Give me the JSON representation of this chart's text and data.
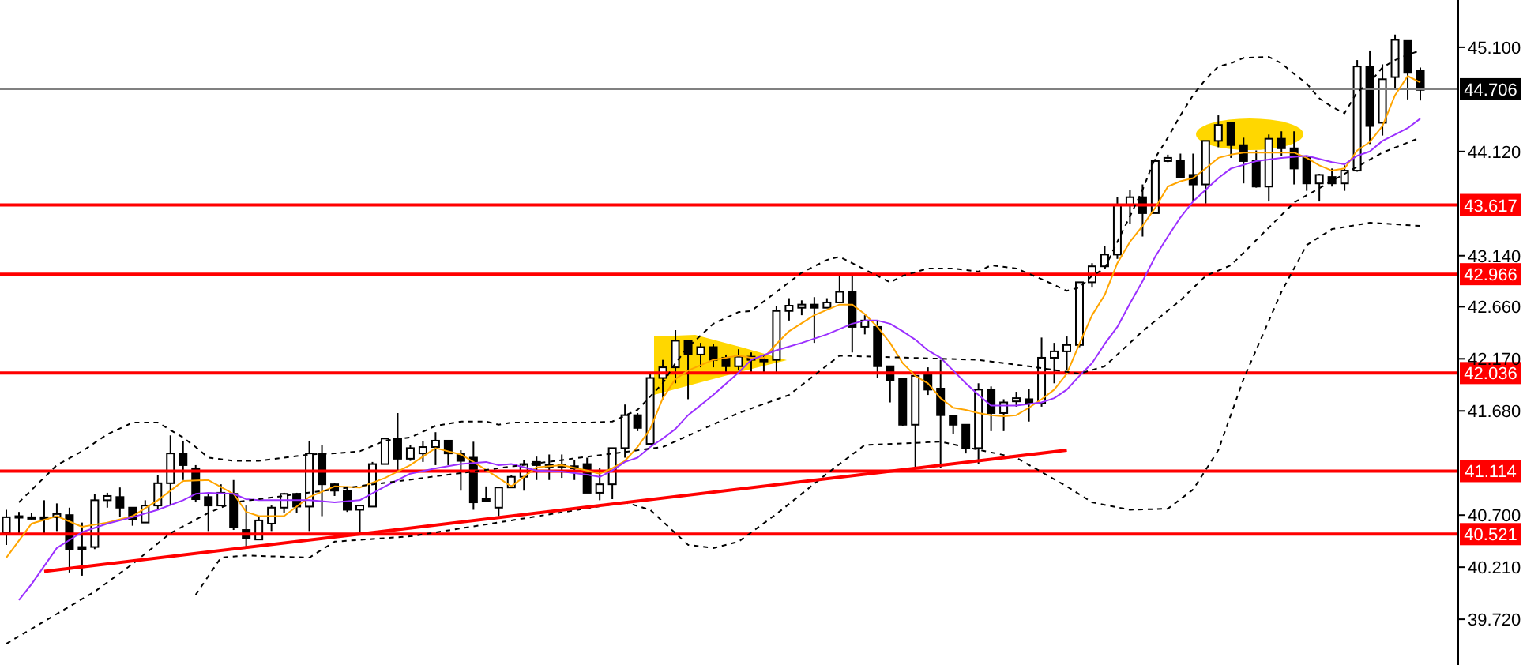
{
  "chart_data": {
    "type": "candlestick",
    "categories": [
      null,
      null,
      null,
      null,
      null,
      null,
      null,
      null,
      null,
      null,
      null,
      null,
      null,
      null,
      null,
      null,
      null,
      null,
      null,
      null,
      null,
      null,
      null,
      null,
      null,
      null,
      null,
      null,
      null,
      null,
      null,
      null,
      null,
      null,
      null,
      null,
      null,
      null,
      null,
      null,
      null,
      null,
      null,
      null,
      null,
      null,
      null,
      null,
      null,
      null,
      null,
      null,
      null,
      null,
      null,
      null,
      null,
      null,
      null,
      null,
      null,
      null,
      null,
      null,
      null,
      null,
      null,
      null,
      null,
      null,
      null,
      null,
      null,
      null,
      null,
      null,
      null,
      null,
      null,
      null,
      null,
      null,
      null,
      null,
      null,
      null,
      null,
      null,
      null,
      null,
      null,
      null,
      null,
      null,
      null,
      null,
      null,
      null,
      null,
      null,
      null,
      null,
      null,
      null,
      null,
      null,
      null,
      null,
      null,
      null,
      null,
      null,
      null
    ],
    "ohlc": [
      [
        40.53,
        40.75,
        40.42,
        40.68
      ],
      [
        40.68,
        40.73,
        40.53,
        40.69
      ],
      [
        40.68,
        40.72,
        40.66,
        40.67
      ],
      [
        40.67,
        40.84,
        40.53,
        40.68
      ],
      [
        40.68,
        40.81,
        40.55,
        40.71
      ],
      [
        40.7,
        40.77,
        40.16,
        40.38
      ],
      [
        40.4,
        40.63,
        40.13,
        40.38
      ],
      [
        40.4,
        40.9,
        40.38,
        40.84
      ],
      [
        40.84,
        40.91,
        40.77,
        40.88
      ],
      [
        40.87,
        40.96,
        40.68,
        40.77
      ],
      [
        40.77,
        40.77,
        40.6,
        40.66
      ],
      [
        40.63,
        40.84,
        40.63,
        40.79
      ],
      [
        40.79,
        41.08,
        40.75,
        41.0
      ],
      [
        41.0,
        41.45,
        40.79,
        41.28
      ],
      [
        41.28,
        41.4,
        41.03,
        41.17
      ],
      [
        41.14,
        41.17,
        40.82,
        40.85
      ],
      [
        40.87,
        40.9,
        40.55,
        40.79
      ],
      [
        40.79,
        40.99,
        40.79,
        40.91
      ],
      [
        40.9,
        41.03,
        40.56,
        40.59
      ],
      [
        40.56,
        40.79,
        40.39,
        40.48
      ],
      [
        40.47,
        40.68,
        40.47,
        40.65
      ],
      [
        40.62,
        40.79,
        40.55,
        40.77
      ],
      [
        40.77,
        40.91,
        40.72,
        40.9
      ],
      [
        40.9,
        40.91,
        40.72,
        40.78
      ],
      [
        40.78,
        41.4,
        40.55,
        41.28
      ],
      [
        41.28,
        41.36,
        40.69,
        40.99
      ],
      [
        40.99,
        41.0,
        40.88,
        40.93
      ],
      [
        40.93,
        40.97,
        40.73,
        40.75
      ],
      [
        40.75,
        40.79,
        40.53,
        40.79
      ],
      [
        40.78,
        41.2,
        40.78,
        41.18
      ],
      [
        41.18,
        41.42,
        41.18,
        41.42
      ],
      [
        41.42,
        41.66,
        41.12,
        41.23
      ],
      [
        41.23,
        41.36,
        41.21,
        41.33
      ],
      [
        41.28,
        41.4,
        41.2,
        41.34
      ],
      [
        41.34,
        41.48,
        41.17,
        41.4
      ],
      [
        41.4,
        41.4,
        41.17,
        41.28
      ],
      [
        41.28,
        41.31,
        40.93,
        41.21
      ],
      [
        41.24,
        41.39,
        40.75,
        40.82
      ],
      [
        40.85,
        40.97,
        40.84,
        40.84
      ],
      [
        40.77,
        40.96,
        40.69,
        40.96
      ],
      [
        40.96,
        41.08,
        40.96,
        41.06
      ],
      [
        41.06,
        41.22,
        40.93,
        41.18
      ],
      [
        41.2,
        41.25,
        41.03,
        41.17
      ],
      [
        41.17,
        41.27,
        41.03,
        41.16
      ],
      [
        41.16,
        41.27,
        41.05,
        41.17
      ],
      [
        41.16,
        41.22,
        41.03,
        41.14
      ],
      [
        41.18,
        41.24,
        40.91,
        40.91
      ],
      [
        40.91,
        41.14,
        40.84,
        40.99
      ],
      [
        40.99,
        41.33,
        40.85,
        41.33
      ],
      [
        41.33,
        41.74,
        41.24,
        41.64
      ],
      [
        41.64,
        41.66,
        41.49,
        41.52
      ],
      [
        41.37,
        42.04,
        41.37,
        41.99
      ],
      [
        41.99,
        42.16,
        41.79,
        42.09
      ],
      [
        42.09,
        42.44,
        41.94,
        42.34
      ],
      [
        42.34,
        42.34,
        41.79,
        42.21
      ],
      [
        42.21,
        42.32,
        42.09,
        42.28
      ],
      [
        42.28,
        42.31,
        42.09,
        42.16
      ],
      [
        42.18,
        42.21,
        42.03,
        42.1
      ],
      [
        42.1,
        42.26,
        42.06,
        42.19
      ],
      [
        42.19,
        42.23,
        42.04,
        42.16
      ],
      [
        42.16,
        42.21,
        42.03,
        42.16
      ],
      [
        42.16,
        42.67,
        42.04,
        42.62
      ],
      [
        42.62,
        42.74,
        42.53,
        42.67
      ],
      [
        42.65,
        42.72,
        42.58,
        42.68
      ],
      [
        42.68,
        42.75,
        42.32,
        42.65
      ],
      [
        42.65,
        42.74,
        42.65,
        42.7
      ],
      [
        42.7,
        42.95,
        42.7,
        42.8
      ],
      [
        42.8,
        42.95,
        42.23,
        42.47
      ],
      [
        42.47,
        42.58,
        42.4,
        42.53
      ],
      [
        42.47,
        42.53,
        41.99,
        42.1
      ],
      [
        42.1,
        42.1,
        41.76,
        41.97
      ],
      [
        41.98,
        41.99,
        41.54,
        41.55
      ],
      [
        41.55,
        42.03,
        41.15,
        42.01
      ],
      [
        42.03,
        42.09,
        41.83,
        41.88
      ],
      [
        41.89,
        42.16,
        41.14,
        41.64
      ],
      [
        41.63,
        41.64,
        41.46,
        41.55
      ],
      [
        41.55,
        41.55,
        41.28,
        41.33
      ],
      [
        41.33,
        41.94,
        41.18,
        41.88
      ],
      [
        41.88,
        41.91,
        41.49,
        41.66
      ],
      [
        41.66,
        41.79,
        41.49,
        41.76
      ],
      [
        41.77,
        41.86,
        41.72,
        41.8
      ],
      [
        41.79,
        41.89,
        41.58,
        41.75
      ],
      [
        41.75,
        42.37,
        41.72,
        42.18
      ],
      [
        42.18,
        42.32,
        41.94,
        42.24
      ],
      [
        42.24,
        42.38,
        42.06,
        42.3
      ],
      [
        42.3,
        42.89,
        42.28,
        42.89
      ],
      [
        42.89,
        43.07,
        42.84,
        43.04
      ],
      [
        43.04,
        43.23,
        43.02,
        43.15
      ],
      [
        43.15,
        43.69,
        43.11,
        43.62
      ],
      [
        43.62,
        43.76,
        43.44,
        43.69
      ],
      [
        43.69,
        43.81,
        43.32,
        43.54
      ],
      [
        43.54,
        44.05,
        43.54,
        44.03
      ],
      [
        44.03,
        44.09,
        44.02,
        44.06
      ],
      [
        44.03,
        44.1,
        43.88,
        43.88
      ],
      [
        43.9,
        44.1,
        43.65,
        43.81
      ],
      [
        43.81,
        44.22,
        43.63,
        44.22
      ],
      [
        44.22,
        44.46,
        44.16,
        44.37
      ],
      [
        44.39,
        44.4,
        44.06,
        44.18
      ],
      [
        44.18,
        44.25,
        43.82,
        44.03
      ],
      [
        44.03,
        44.13,
        43.78,
        43.79
      ],
      [
        43.79,
        44.28,
        43.65,
        44.24
      ],
      [
        44.24,
        44.31,
        44.08,
        44.15
      ],
      [
        44.15,
        44.31,
        43.81,
        43.96
      ],
      [
        44.06,
        44.08,
        43.75,
        43.82
      ],
      [
        43.82,
        43.91,
        43.65,
        43.9
      ],
      [
        43.88,
        43.96,
        43.79,
        43.82
      ],
      [
        43.82,
        43.99,
        43.75,
        43.94
      ],
      [
        43.94,
        44.98,
        43.93,
        44.92
      ],
      [
        44.92,
        45.07,
        44.19,
        44.36
      ],
      [
        44.39,
        44.94,
        44.27,
        44.8
      ],
      [
        44.82,
        45.22,
        44.7,
        45.17
      ],
      [
        45.16,
        45.16,
        44.61,
        44.86
      ],
      [
        44.88,
        44.91,
        44.6,
        44.7
      ]
    ],
    "series": [
      {
        "type": "line",
        "color": "#ffa500",
        "values": [
          40.3,
          null,
          40.62,
          null,
          40.69,
          null,
          40.59,
          null,
          40.63,
          null,
          40.69,
          null,
          40.84,
          null,
          41.02,
          null,
          41.03,
          null,
          40.9,
          40.73,
          40.69,
          null,
          40.69,
          null,
          40.87,
          null,
          40.97,
          null,
          40.96,
          null,
          41.05,
          null,
          41.17,
          null,
          41.33,
          null,
          41.27,
          41.2,
          null,
          41.05,
          40.97,
          null,
          41.15,
          null,
          41.17,
          null,
          41.12,
          41.09,
          41.14,
          41.21,
          41.34,
          41.51,
          41.8,
          41.98,
          42.06,
          null,
          42.16,
          null,
          42.2,
          42.18,
          42.18,
          42.31,
          42.43,
          null,
          42.58,
          null,
          42.68,
          42.68,
          42.59,
          42.47,
          42.32,
          42.13,
          42.01,
          41.94,
          41.8,
          41.71,
          41.69,
          41.66,
          41.64,
          41.63,
          41.64,
          41.71,
          41.79,
          41.88,
          42.03,
          42.31,
          42.58,
          42.77,
          43.07,
          43.27,
          43.42,
          43.59,
          43.79,
          43.84,
          43.87,
          43.96,
          44.06,
          44.09,
          44.11,
          null,
          44.11,
          null,
          44.11,
          44.06,
          43.99,
          43.94,
          43.96,
          44.13,
          44.21,
          44.36,
          44.65,
          44.83,
          44.77
        ]
      },
      {
        "type": "line",
        "color": "#9b30ff",
        "values": [
          null,
          39.9,
          40.05,
          null,
          40.39,
          null,
          40.54,
          null,
          40.62,
          null,
          40.68,
          null,
          40.75,
          null,
          40.84,
          40.9,
          40.91,
          null,
          40.9,
          40.85,
          40.84,
          null,
          40.84,
          null,
          40.84,
          null,
          40.82,
          null,
          40.84,
          null,
          40.97,
          null,
          41.09,
          null,
          41.14,
          null,
          41.18,
          null,
          41.2,
          41.17,
          41.18,
          null,
          41.12,
          null,
          41.11,
          null,
          41.08,
          41.06,
          41.12,
          41.2,
          41.24,
          41.34,
          41.42,
          41.51,
          41.64,
          null,
          41.83,
          null,
          42.04,
          42.16,
          null,
          42.25,
          null,
          42.32,
          null,
          42.4,
          null,
          42.5,
          42.53,
          42.53,
          42.5,
          42.43,
          42.35,
          42.25,
          42.18,
          42.06,
          41.94,
          41.83,
          41.73,
          null,
          41.73,
          null,
          41.76,
          41.8,
          41.88,
          42.01,
          42.13,
          42.31,
          42.47,
          42.69,
          42.9,
          43.13,
          43.32,
          43.5,
          43.65,
          43.76,
          43.87,
          43.96,
          null,
          44.03,
          null,
          44.06,
          null,
          44.08,
          null,
          44.02,
          44.0,
          44.08,
          44.12,
          44.22,
          44.28,
          44.34,
          44.43
        ]
      },
      {
        "type": "line",
        "color": "#000000",
        "line_style": "dashed",
        "values": [
          null,
          40.82,
          null,
          null,
          41.17,
          null,
          41.3,
          null,
          41.46,
          null,
          41.57,
          null,
          41.57,
          null,
          41.43,
          41.34,
          41.24,
          null,
          41.21,
          null,
          41.21,
          null,
          null,
          null,
          41.27,
          null,
          41.28,
          null,
          41.3,
          null,
          41.4,
          null,
          41.43,
          null,
          41.54,
          null,
          41.58,
          null,
          41.58,
          41.55,
          41.57,
          null,
          null,
          null,
          null,
          null,
          41.57,
          null,
          41.58,
          null,
          41.69,
          null,
          41.94,
          42.13,
          42.28,
          null,
          42.5,
          null,
          42.61,
          42.62,
          null,
          42.8,
          null,
          42.98,
          null,
          43.1,
          43.13,
          43.07,
          null,
          42.95,
          42.89,
          42.95,
          null,
          43.02,
          null,
          43.02,
          null,
          42.99,
          43.05,
          null,
          43.02,
          null,
          42.92,
          null,
          42.81,
          42.84,
          42.95,
          43.02,
          43.27,
          43.51,
          43.76,
          44.06,
          44.25,
          44.46,
          44.65,
          44.8,
          44.92,
          44.95,
          45.0,
          null,
          45.01,
          44.95,
          44.85,
          44.76,
          44.62,
          44.54,
          44.48,
          44.68,
          44.77,
          44.91,
          44.98,
          45.03,
          45.07
        ]
      },
      {
        "type": "line",
        "color": "#000000",
        "line_style": "dashed",
        "values": [
          39.49,
          null,
          null,
          null,
          null,
          null,
          null,
          39.98,
          null,
          null,
          40.24,
          null,
          null,
          40.53,
          null,
          null,
          40.72,
          null,
          40.82,
          null,
          null,
          null,
          null,
          null,
          null,
          null,
          null,
          null,
          null,
          null,
          null,
          null,
          null,
          null,
          null,
          null,
          null,
          null,
          null,
          null,
          null,
          null,
          null,
          null,
          null,
          null,
          null,
          null,
          null,
          null,
          null,
          null,
          41.34,
          null,
          null,
          null,
          null,
          null,
          41.66,
          null,
          null,
          null,
          41.83,
          null,
          null,
          null,
          42.2,
          null,
          null,
          null,
          null,
          null,
          null,
          null,
          null,
          null,
          null,
          42.16,
          null,
          null,
          null,
          42.1,
          null,
          null,
          null,
          42.03,
          null,
          42.1,
          null,
          null,
          42.43,
          null,
          null,
          42.72,
          null,
          42.95,
          null,
          43.05,
          null,
          null,
          null,
          null,
          43.64,
          null,
          null,
          null,
          43.91,
          null,
          null,
          44.11,
          null,
          null,
          44.25
        ]
      },
      {
        "type": "line",
        "color": "#000000",
        "line_style": "dashed",
        "values": [
          null,
          null,
          null,
          null,
          null,
          null,
          null,
          null,
          null,
          null,
          null,
          null,
          null,
          null,
          null,
          39.95,
          null,
          40.3,
          null,
          40.32,
          null,
          null,
          null,
          null,
          40.3,
          null,
          40.45,
          null,
          null,
          null,
          null,
          null,
          40.5,
          null,
          null,
          null,
          null,
          null,
          null,
          null,
          40.65,
          null,
          null,
          null,
          null,
          null,
          null,
          null,
          null,
          40.82,
          null,
          40.75,
          null,
          null,
          40.42,
          null,
          40.39,
          null,
          40.45,
          null,
          null,
          40.71,
          null,
          null,
          null,
          41.09,
          null,
          null,
          41.36,
          null,
          null,
          null,
          null,
          null,
          41.39,
          null,
          null,
          null,
          null,
          null,
          41.24,
          null,
          null,
          null,
          40.97,
          null,
          40.82,
          null,
          null,
          40.75,
          null,
          null,
          40.76,
          null,
          40.94,
          null,
          41.31,
          null,
          41.98,
          null,
          null,
          42.8,
          null,
          43.24,
          null,
          43.39,
          null,
          null,
          43.45,
          null,
          null,
          null,
          43.42
        ]
      },
      {
        "type": "line",
        "color": "#ff0000",
        "values": [
          null,
          null,
          null,
          40.17,
          null,
          null,
          null,
          null,
          null,
          null,
          null,
          null,
          null,
          null,
          null,
          null,
          null,
          null,
          null,
          null,
          null,
          null,
          null,
          null,
          null,
          null,
          null,
          null,
          null,
          null,
          null,
          null,
          null,
          null,
          null,
          null,
          null,
          null,
          null,
          null,
          null,
          null,
          null,
          null,
          null,
          null,
          null,
          null,
          null,
          null,
          null,
          null,
          null,
          null,
          null,
          null,
          null,
          null,
          null,
          null,
          null,
          null,
          null,
          null,
          null,
          null,
          null,
          null,
          null,
          null,
          null,
          null,
          null,
          null,
          null,
          null,
          null,
          null,
          null,
          null,
          null,
          null,
          null,
          null,
          41.31,
          null,
          null,
          null,
          null,
          null,
          null,
          null,
          null,
          null,
          null,
          null,
          null,
          null,
          null,
          null,
          null,
          null,
          null,
          null,
          null,
          null,
          null,
          null,
          null,
          null,
          null,
          null,
          null
        ]
      }
    ],
    "ylim": [
      39.29,
      45.545
    ],
    "yticks": [
      {
        "value": 39.72,
        "label": "39.720"
      },
      {
        "value": 40.21,
        "label": "40.210"
      },
      {
        "value": 40.7,
        "label": "40.700"
      },
      {
        "value": 41.68,
        "label": "41.680"
      },
      {
        "value": 42.17,
        "label": "42.170"
      },
      {
        "value": 42.66,
        "label": "42.660"
      },
      {
        "value": 43.14,
        "label": "43.140"
      },
      {
        "value": 44.12,
        "label": "44.120"
      },
      {
        "value": 45.1,
        "label": "45.100"
      }
    ],
    "tick_labels": "y",
    "ref_lines": [
      {
        "axis": "y",
        "value": 44.706,
        "label": "44.706",
        "color": "#808080"
      },
      {
        "axis": "y",
        "value": 43.617,
        "label": "43.617",
        "color": "#ff0000"
      },
      {
        "axis": "y",
        "value": 42.966,
        "label": "42.966",
        "color": "#ff0000"
      },
      {
        "axis": "y",
        "value": 42.036,
        "label": "42.036",
        "color": "#ff0000"
      },
      {
        "axis": "y",
        "value": 41.114,
        "label": "41.114",
        "color": "#ff0000"
      },
      {
        "axis": "y",
        "value": 40.521,
        "label": "40.521",
        "color": "#ff0000"
      }
    ]
  }
}
